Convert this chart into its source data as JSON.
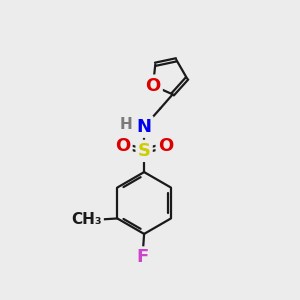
{
  "bg_color": "#ececec",
  "atom_colors": {
    "C": "#1a1a1a",
    "H": "#7a7a7a",
    "N": "#0000ee",
    "O": "#dd0000",
    "S": "#cccc00",
    "F": "#cc44cc"
  },
  "bond_color": "#1a1a1a",
  "bond_width": 1.6,
  "font_size_atom": 13,
  "font_size_small": 11
}
